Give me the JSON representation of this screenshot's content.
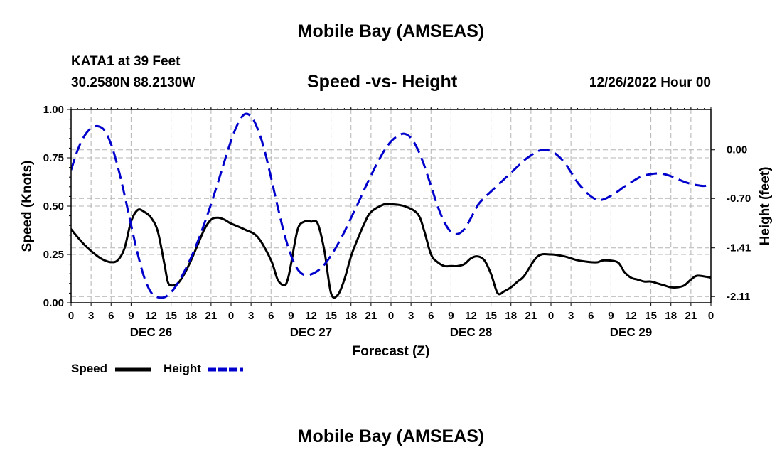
{
  "header": {
    "title": "Mobile Bay (AMSEAS)",
    "station": "KATA1 at 39 Feet",
    "coords": "30.2580N  88.2130W",
    "subtitle": "Speed -vs- Height",
    "run_time": "12/26/2022 Hour 00"
  },
  "footer": {
    "title": "Mobile Bay (AMSEAS)"
  },
  "chart_data": {
    "type": "line",
    "title": "Speed -vs- Height",
    "xlabel": "Forecast (Z)",
    "ylabel": "Speed (Knots)",
    "y2label": "Height (feet)",
    "xlim": [
      0,
      96
    ],
    "ylim": [
      0,
      1
    ],
    "y2lim": [
      -2.2,
      0.58
    ],
    "x_ticks": [
      0,
      3,
      6,
      9,
      12,
      15,
      18,
      21,
      24,
      27,
      30,
      33,
      36,
      39,
      42,
      45,
      48,
      51,
      54,
      57,
      60,
      63,
      66,
      69,
      72,
      75,
      78,
      81,
      84,
      87,
      90,
      93,
      96
    ],
    "x_tick_labels": [
      "0",
      "3",
      "6",
      "9",
      "12",
      "15",
      "18",
      "21",
      "0",
      "3",
      "6",
      "9",
      "12",
      "15",
      "18",
      "21",
      "0",
      "3",
      "6",
      "9",
      "12",
      "15",
      "18",
      "21",
      "0",
      "3",
      "6",
      "9",
      "12",
      "15",
      "18",
      "21",
      "0"
    ],
    "day_labels": [
      {
        "x": 12,
        "label": "DEC 26"
      },
      {
        "x": 36,
        "label": "DEC 27"
      },
      {
        "x": 60,
        "label": "DEC 28"
      },
      {
        "x": 84,
        "label": "DEC 29"
      }
    ],
    "y_ticks": [
      0,
      0.25,
      0.5,
      0.75,
      1.0
    ],
    "y_tick_labels": [
      "0.00",
      "0.25",
      "0.50",
      "0.75",
      "1.00"
    ],
    "y2_ticks": [
      0.0,
      -0.7,
      -1.41,
      -2.11
    ],
    "y2_tick_labels": [
      "0.00",
      "-0.70",
      "-1.41",
      "-2.11"
    ],
    "grid": true,
    "legend": "bottom-left",
    "series": [
      {
        "name": "Speed",
        "axis": "left",
        "color": "#000000",
        "style": "solid",
        "x": [
          0,
          2,
          4,
          5,
          6,
          7,
          8,
          9,
          10,
          11,
          12,
          13,
          14,
          14.5,
          15,
          16,
          17,
          18,
          19,
          20,
          21,
          22,
          23,
          24,
          26,
          28,
          30,
          31,
          32,
          32.5,
          33,
          34,
          35,
          36,
          37,
          38,
          39,
          40,
          41,
          42,
          43,
          44,
          45,
          47,
          48,
          50,
          52,
          53,
          54,
          55,
          56,
          57,
          58,
          59,
          60,
          61,
          62,
          63,
          64,
          65,
          66,
          67,
          68,
          70,
          72,
          74,
          76,
          78,
          79,
          80,
          82,
          83,
          84,
          85,
          86,
          87,
          88,
          89,
          90,
          91,
          92,
          93,
          94,
          96
        ],
        "y": [
          0.38,
          0.3,
          0.24,
          0.22,
          0.21,
          0.22,
          0.28,
          0.42,
          0.48,
          0.47,
          0.44,
          0.37,
          0.2,
          0.11,
          0.09,
          0.1,
          0.15,
          0.22,
          0.3,
          0.38,
          0.43,
          0.44,
          0.43,
          0.41,
          0.38,
          0.34,
          0.22,
          0.12,
          0.09,
          0.12,
          0.2,
          0.38,
          0.42,
          0.42,
          0.41,
          0.27,
          0.05,
          0.04,
          0.12,
          0.24,
          0.33,
          0.41,
          0.47,
          0.51,
          0.51,
          0.5,
          0.46,
          0.37,
          0.25,
          0.21,
          0.19,
          0.19,
          0.19,
          0.2,
          0.23,
          0.24,
          0.22,
          0.15,
          0.05,
          0.06,
          0.08,
          0.11,
          0.14,
          0.24,
          0.25,
          0.24,
          0.22,
          0.21,
          0.21,
          0.22,
          0.21,
          0.16,
          0.13,
          0.12,
          0.11,
          0.11,
          0.1,
          0.09,
          0.08,
          0.08,
          0.09,
          0.12,
          0.14,
          0.13
        ]
      },
      {
        "name": "Height",
        "axis": "right",
        "color": "#0000cc",
        "style": "dashed",
        "x": [
          0,
          1,
          2,
          3,
          4,
          5,
          6,
          7,
          8,
          9,
          10,
          11,
          12,
          13,
          14,
          15,
          16,
          17,
          18,
          19,
          20,
          21,
          22,
          23,
          24,
          25,
          26,
          27,
          28,
          29,
          30,
          31,
          32,
          33,
          34,
          35,
          36,
          37,
          38,
          39,
          40,
          41,
          42,
          43,
          44,
          45,
          46,
          47,
          48,
          49,
          50,
          51,
          52,
          53,
          54,
          55,
          56,
          57,
          58,
          59,
          60,
          61,
          62,
          63,
          64,
          65,
          66,
          67,
          68,
          69,
          70,
          71,
          72,
          73,
          74,
          75,
          76,
          77,
          78,
          79,
          80,
          81,
          82,
          83,
          84,
          85,
          86,
          87,
          88,
          89,
          90,
          91,
          92,
          93,
          94,
          95,
          96
        ],
        "y": [
          -0.29,
          0.0,
          0.2,
          0.31,
          0.34,
          0.28,
          0.08,
          -0.24,
          -0.64,
          -1.08,
          -1.5,
          -1.84,
          -2.05,
          -2.12,
          -2.12,
          -2.05,
          -1.92,
          -1.75,
          -1.55,
          -1.32,
          -1.06,
          -0.78,
          -0.48,
          -0.17,
          0.13,
          0.37,
          0.51,
          0.48,
          0.3,
          0.0,
          -0.4,
          -0.82,
          -1.21,
          -1.52,
          -1.72,
          -1.8,
          -1.79,
          -1.74,
          -1.65,
          -1.52,
          -1.36,
          -1.18,
          -0.98,
          -0.78,
          -0.57,
          -0.37,
          -0.18,
          -0.01,
          0.12,
          0.2,
          0.23,
          0.17,
          0.01,
          -0.23,
          -0.52,
          -0.81,
          -1.04,
          -1.18,
          -1.21,
          -1.14,
          -0.98,
          -0.8,
          -0.69,
          -0.6,
          -0.51,
          -0.42,
          -0.33,
          -0.24,
          -0.15,
          -0.08,
          -0.02,
          0.0,
          -0.02,
          -0.08,
          -0.18,
          -0.32,
          -0.47,
          -0.58,
          -0.67,
          -0.72,
          -0.71,
          -0.66,
          -0.6,
          -0.53,
          -0.47,
          -0.41,
          -0.37,
          -0.35,
          -0.34,
          -0.35,
          -0.38,
          -0.42,
          -0.46,
          -0.49,
          -0.51,
          -0.52,
          -0.5
        ]
      }
    ]
  }
}
